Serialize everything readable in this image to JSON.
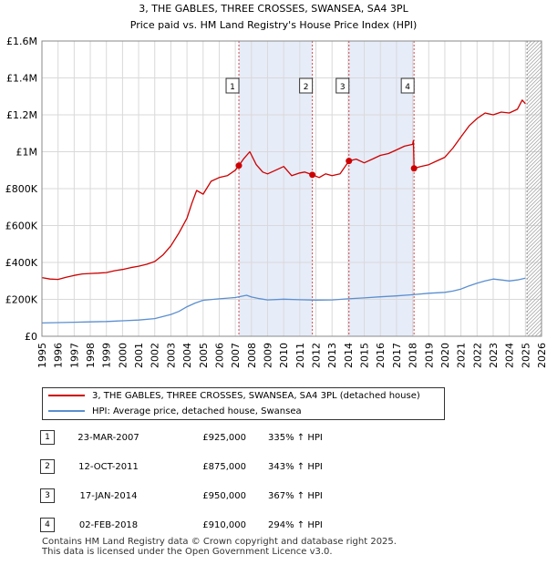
{
  "chart_data": {
    "type": "line",
    "title": "3, THE GABLES, THREE CROSSES, SWANSEA, SA4 3PL",
    "subtitle": "Price paid vs. HM Land Registry's House Price Index (HPI)",
    "xlim": [
      1995,
      2026
    ],
    "ylim": [
      0,
      1600000
    ],
    "x_ticks": [
      "1995",
      "1996",
      "1997",
      "1998",
      "1999",
      "2000",
      "2001",
      "2002",
      "2003",
      "2004",
      "2005",
      "2006",
      "2007",
      "2008",
      "2009",
      "2010",
      "2011",
      "2012",
      "2013",
      "2014",
      "2015",
      "2016",
      "2017",
      "2018",
      "2019",
      "2020",
      "2021",
      "2022",
      "2023",
      "2024",
      "2025",
      "2026"
    ],
    "y_ticks": [
      {
        "value": 0,
        "label": "£0"
      },
      {
        "value": 200000,
        "label": "£200K"
      },
      {
        "value": 400000,
        "label": "£400K"
      },
      {
        "value": 600000,
        "label": "£600K"
      },
      {
        "value": 800000,
        "label": "£800K"
      },
      {
        "value": 1000000,
        "label": "£1M"
      },
      {
        "value": 1200000,
        "label": "£1.2M"
      },
      {
        "value": 1400000,
        "label": "£1.4M"
      },
      {
        "value": 1600000,
        "label": "£1.6M"
      }
    ],
    "shaded_periods": [
      [
        2007.22,
        2011.78
      ],
      [
        2014.05,
        2018.09
      ]
    ],
    "future_hatch_from": 2025.1,
    "series": [
      {
        "name": "3, THE GABLES, THREE CROSSES, SWANSEA, SA4 3PL (detached house)",
        "color": "#cc0000",
        "x": [
          1995.0,
          1995.5,
          1996.0,
          1996.5,
          1997.0,
          1997.5,
          1998.0,
          1998.5,
          1999.0,
          1999.5,
          2000.0,
          2000.5,
          2001.0,
          2001.5,
          2002.0,
          2002.5,
          2003.0,
          2003.5,
          2004.0,
          2004.3,
          2004.6,
          2005.0,
          2005.5,
          2006.0,
          2006.5,
          2007.0,
          2007.22,
          2007.5,
          2007.9,
          2008.3,
          2008.7,
          2009.0,
          2009.5,
          2010.0,
          2010.5,
          2011.0,
          2011.3,
          2011.78,
          2012.2,
          2012.6,
          2013.0,
          2013.5,
          2014.05,
          2014.5,
          2015.0,
          2015.5,
          2016.0,
          2016.5,
          2017.0,
          2017.5,
          2018.0,
          2018.05,
          2018.09,
          2018.5,
          2019.0,
          2019.5,
          2020.0,
          2020.5,
          2021.0,
          2021.5,
          2022.0,
          2022.5,
          2023.0,
          2023.5,
          2024.0,
          2024.5,
          2024.8,
          2025.0
        ],
        "values": [
          318000,
          310000,
          308000,
          320000,
          330000,
          338000,
          340000,
          342000,
          345000,
          355000,
          362000,
          372000,
          380000,
          390000,
          405000,
          440000,
          490000,
          560000,
          640000,
          720000,
          790000,
          770000,
          840000,
          860000,
          870000,
          900000,
          925000,
          960000,
          1000000,
          930000,
          890000,
          880000,
          900000,
          920000,
          870000,
          885000,
          890000,
          875000,
          860000,
          880000,
          870000,
          880000,
          950000,
          960000,
          940000,
          960000,
          980000,
          990000,
          1010000,
          1030000,
          1040000,
          1060000,
          910000,
          920000,
          930000,
          950000,
          970000,
          1020000,
          1080000,
          1140000,
          1180000,
          1210000,
          1200000,
          1215000,
          1210000,
          1230000,
          1280000,
          1260000
        ]
      },
      {
        "name": "HPI: Average price, detached house, Swansea",
        "color": "#5b8fd0",
        "x": [
          1995.0,
          1996.0,
          1997.0,
          1998.0,
          1999.0,
          2000.0,
          2001.0,
          2002.0,
          2003.0,
          2003.5,
          2004.0,
          2004.5,
          2005.0,
          2006.0,
          2007.0,
          2007.7,
          2008.0,
          2008.5,
          2009.0,
          2010.0,
          2011.0,
          2012.0,
          2013.0,
          2014.0,
          2015.0,
          2016.0,
          2017.0,
          2018.0,
          2019.0,
          2020.0,
          2020.5,
          2021.0,
          2021.5,
          2022.0,
          2022.5,
          2023.0,
          2023.5,
          2024.0,
          2024.5,
          2025.0
        ],
        "values": [
          72000,
          74000,
          76000,
          78000,
          80000,
          84000,
          88000,
          96000,
          118000,
          135000,
          160000,
          180000,
          195000,
          203000,
          210000,
          222000,
          213000,
          204000,
          197000,
          201000,
          198000,
          196000,
          197000,
          203000,
          208000,
          214000,
          219000,
          225000,
          233000,
          238000,
          245000,
          256000,
          273000,
          288000,
          300000,
          310000,
          305000,
          300000,
          305000,
          315000
        ]
      }
    ],
    "sales": [
      {
        "num": "1",
        "x": 2007.22,
        "value": 925000
      },
      {
        "num": "2",
        "x": 2011.78,
        "value": 875000
      },
      {
        "num": "3",
        "x": 2014.05,
        "value": 950000
      },
      {
        "num": "4",
        "x": 2018.09,
        "value": 910000
      }
    ]
  },
  "legend": {
    "property_label": "3, THE GABLES, THREE CROSSES, SWANSEA, SA4 3PL (detached house)",
    "hpi_label": "HPI: Average price, detached house, Swansea"
  },
  "transactions": [
    {
      "num": "1",
      "date": "23-MAR-2007",
      "price": "£925,000",
      "hpi": "335% ↑ HPI"
    },
    {
      "num": "2",
      "date": "12-OCT-2011",
      "price": "£875,000",
      "hpi": "343% ↑ HPI"
    },
    {
      "num": "3",
      "date": "17-JAN-2014",
      "price": "£950,000",
      "hpi": "367% ↑ HPI"
    },
    {
      "num": "4",
      "date": "02-FEB-2018",
      "price": "£910,000",
      "hpi": "294% ↑ HPI"
    }
  ],
  "footer": {
    "line1": "Contains HM Land Registry data © Crown copyright and database right 2025.",
    "line2": "This data is licensed under the Open Government Licence v3.0."
  },
  "colors": {
    "property": "#cc0000",
    "hpi": "#5b8fd0",
    "shade": "#e6ecf8",
    "grid": "#d9d9d9"
  }
}
